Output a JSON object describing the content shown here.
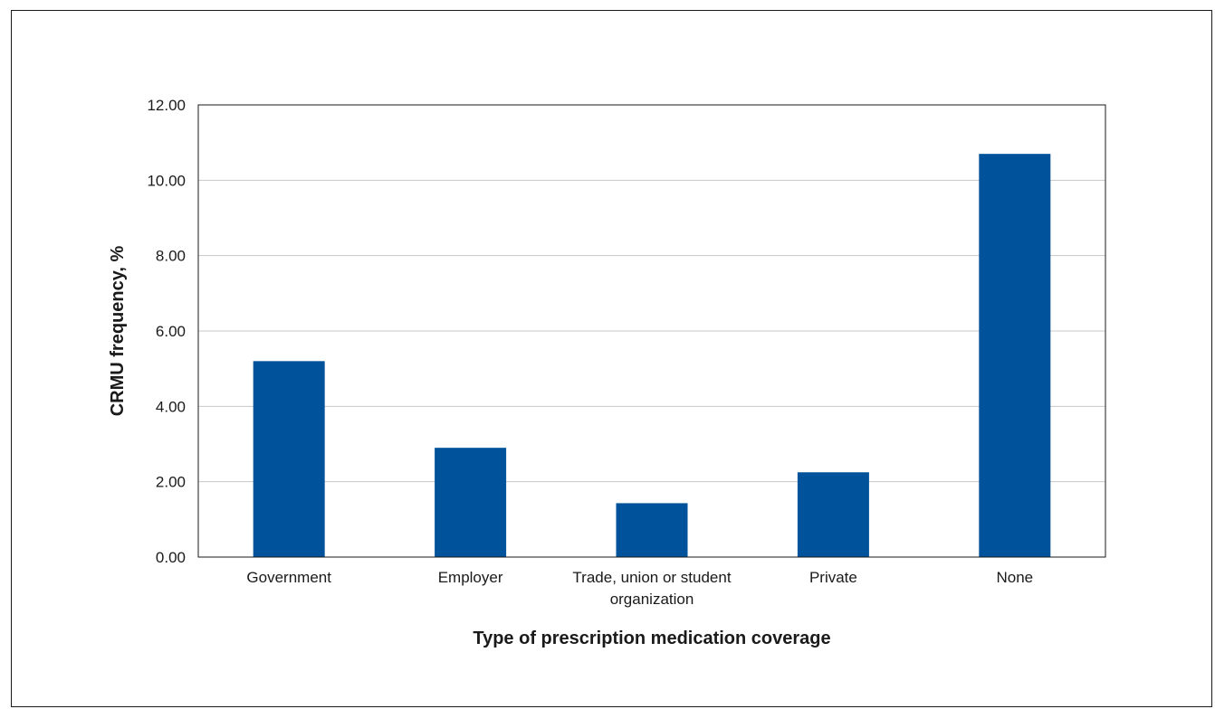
{
  "chart_data": {
    "type": "bar",
    "title": "",
    "xlabel": "Type of prescription medication coverage",
    "ylabel": "CRMU frequency, %",
    "categories": [
      [
        "Government"
      ],
      [
        "Employer"
      ],
      [
        "Trade, union or student",
        "organization"
      ],
      [
        "Private"
      ],
      [
        "None"
      ]
    ],
    "values": [
      5.2,
      2.9,
      1.43,
      2.25,
      10.7
    ],
    "ylim": [
      0,
      12
    ],
    "yticks": [
      "0.00",
      "2.00",
      "4.00",
      "6.00",
      "8.00",
      "10.00",
      "12.00"
    ],
    "grid": true,
    "legend": "none",
    "bar_color": "#00529a",
    "grid_color": "#c8c8c8"
  }
}
